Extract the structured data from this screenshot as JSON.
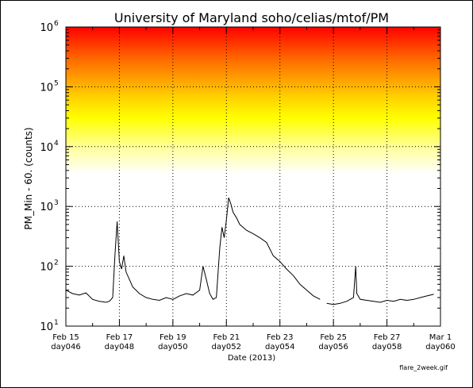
{
  "chart_data": {
    "type": "line",
    "title": "University of Maryland  soho/celias/mtof/PM",
    "xlabel": "Date (2013)",
    "ylabel": "PM_Min  -  60. (counts)",
    "yscale": "log",
    "ylim": [
      10,
      1000000
    ],
    "xlim": [
      "2013-02-15",
      "2013-03-01"
    ],
    "grid": "dotted",
    "y_ticks": [
      {
        "base": "10",
        "exp": "1"
      },
      {
        "base": "10",
        "exp": "2"
      },
      {
        "base": "10",
        "exp": "3"
      },
      {
        "base": "10",
        "exp": "4"
      },
      {
        "base": "10",
        "exp": "5"
      },
      {
        "base": "10",
        "exp": "6"
      }
    ],
    "x_ticks": [
      {
        "date": "Feb 15",
        "day": "day046"
      },
      {
        "date": "Feb 17",
        "day": "day048"
      },
      {
        "date": "Feb 19",
        "day": "day050"
      },
      {
        "date": "Feb 21",
        "day": "day052"
      },
      {
        "date": "Feb 23",
        "day": "day054"
      },
      {
        "date": "Feb 25",
        "day": "day056"
      },
      {
        "date": "Feb 27",
        "day": "day058"
      },
      {
        "date": "Mar 1",
        "day": "day060"
      }
    ],
    "background_bands": {
      "description_colors": [
        "#ff0000",
        "#ff8000",
        "#ffff00",
        "#ffffff"
      ],
      "from_value": 3500,
      "to_value": 1000000
    },
    "series": [
      {
        "color": "#000000",
        "x": [
          "2013-02-15 00:00",
          "2013-02-15 06:00",
          "2013-02-15 12:00",
          "2013-02-15 18:00",
          "2013-02-16 00:00",
          "2013-02-16 06:00",
          "2013-02-16 12:00",
          "2013-02-16 15:00",
          "2013-02-16 18:00",
          "2013-02-16 20:00",
          "2013-02-16 22:00",
          "2013-02-17 00:00",
          "2013-02-17 02:00",
          "2013-02-17 04:00",
          "2013-02-17 06:00",
          "2013-02-17 09:00",
          "2013-02-17 12:00",
          "2013-02-17 18:00",
          "2013-02-18 00:00",
          "2013-02-18 06:00",
          "2013-02-18 12:00",
          "2013-02-18 18:00",
          "2013-02-19 00:00",
          "2013-02-19 06:00",
          "2013-02-19 12:00",
          "2013-02-19 18:00",
          "2013-02-20 00:00",
          "2013-02-20 03:00",
          "2013-02-20 06:00",
          "2013-02-20 09:00",
          "2013-02-20 12:00",
          "2013-02-20 15:00",
          "2013-02-20 18:00",
          "2013-02-20 20:00",
          "2013-02-20 22:00",
          "2013-02-21 00:00",
          "2013-02-21 02:00",
          "2013-02-21 04:00",
          "2013-02-21 06:00",
          "2013-02-21 09:00",
          "2013-02-21 12:00",
          "2013-02-21 18:00",
          "2013-02-22 00:00",
          "2013-02-22 06:00",
          "2013-02-22 12:00",
          "2013-02-22 18:00",
          "2013-02-23 00:00",
          "2013-02-23 06:00",
          "2013-02-23 12:00",
          "2013-02-23 18:00",
          "2013-02-24 00:00",
          "2013-02-24 06:00",
          "2013-02-24 12:00",
          "2013-02-24 15:00",
          "2013-02-24 18:00",
          "2013-02-25 00:00",
          "2013-02-25 06:00",
          "2013-02-25 12:00",
          "2013-02-25 15:00",
          "2013-02-25 18:00",
          "2013-02-25 20:00",
          "2013-02-25 21:00",
          "2013-02-26 00:00",
          "2013-02-26 06:00",
          "2013-02-26 12:00",
          "2013-02-26 18:00",
          "2013-02-27 00:00",
          "2013-02-27 06:00",
          "2013-02-27 12:00",
          "2013-02-27 18:00",
          "2013-02-28 00:00",
          "2013-02-28 06:00",
          "2013-02-28 12:00",
          "2013-02-28 18:00"
        ],
        "y": [
          40,
          35,
          33,
          36,
          28,
          26,
          25,
          26,
          30,
          150,
          560,
          120,
          90,
          150,
          80,
          60,
          45,
          35,
          30,
          28,
          27,
          30,
          28,
          32,
          35,
          33,
          40,
          100,
          60,
          35,
          28,
          30,
          200,
          450,
          300,
          600,
          1400,
          1100,
          800,
          650,
          500,
          400,
          350,
          300,
          250,
          150,
          120,
          90,
          70,
          50,
          40,
          32,
          28,
          null,
          24,
          23,
          24,
          26,
          28,
          30,
          100,
          35,
          28,
          27,
          26,
          25,
          27,
          26,
          28,
          27,
          28,
          30,
          32,
          34
        ]
      }
    ],
    "footer_label": "flare_2week.gif"
  }
}
